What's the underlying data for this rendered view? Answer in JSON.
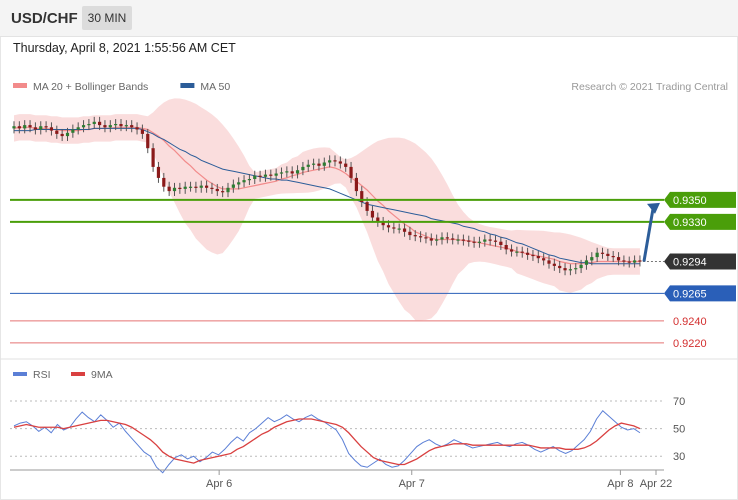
{
  "header": {
    "symbol": "USD/CHF",
    "timeframe": "30 MIN",
    "datetime": "Thursday, April 8, 2021 1:55:56 AM CET"
  },
  "chart_data": [
    {
      "type": "candlestick",
      "legend": [
        {
          "label": "MA 20 + Bollinger Bands",
          "color": "#f28b8b"
        },
        {
          "label": "MA 50",
          "color": "#2c5d99"
        }
      ],
      "legend_position": "top-left",
      "watermark": "Research © 2021 Trading Central",
      "colors": {
        "up": "#2e7d32",
        "down": "#8b1a1a",
        "band_fill": "#f9d7d7",
        "ma20": "#f28b8b",
        "ma50": "#2c5d99"
      },
      "ylim": [
        0.9209,
        0.9459
      ],
      "current_price": {
        "label": "0.9294",
        "value": 0.9294,
        "color": "#333333"
      },
      "levels": [
        {
          "label": "0.9350",
          "value": 0.935,
          "kind": "resistance",
          "color": "#4a9e0a"
        },
        {
          "label": "0.9330",
          "value": 0.933,
          "kind": "resistance",
          "color": "#4a9e0a"
        },
        {
          "label": "0.9265",
          "value": 0.9265,
          "kind": "pivot",
          "color": "#2a5fb8"
        },
        {
          "label": "0.9240",
          "value": 0.924,
          "kind": "support",
          "color": "#e57373"
        },
        {
          "label": "0.9220",
          "value": 0.922,
          "kind": "support",
          "color": "#e57373"
        }
      ],
      "forecast_arrow": {
        "from": 0.9294,
        "to": 0.935,
        "color": "#2c5d99"
      },
      "close": [
        0.9417,
        0.9415,
        0.9418,
        0.9416,
        0.9414,
        0.9417,
        0.9416,
        0.9413,
        0.941,
        0.9408,
        0.9411,
        0.9414,
        0.9416,
        0.9418,
        0.9419,
        0.9421,
        0.9418,
        0.9416,
        0.9418,
        0.9419,
        0.9417,
        0.9418,
        0.9416,
        0.9414,
        0.941,
        0.9397,
        0.938,
        0.937,
        0.9362,
        0.9358,
        0.9361,
        0.936,
        0.9362,
        0.9362,
        0.9361,
        0.9363,
        0.9361,
        0.936,
        0.9358,
        0.9357,
        0.9361,
        0.9364,
        0.9366,
        0.9368,
        0.9369,
        0.9372,
        0.9371,
        0.9373,
        0.9372,
        0.9374,
        0.9375,
        0.9376,
        0.9374,
        0.9377,
        0.938,
        0.9382,
        0.9383,
        0.9381,
        0.9384,
        0.9386,
        0.9385,
        0.9383,
        0.938,
        0.937,
        0.9358,
        0.9348,
        0.934,
        0.9334,
        0.933,
        0.9327,
        0.9325,
        0.9324,
        0.9324,
        0.9321,
        0.9318,
        0.9317,
        0.9316,
        0.9315,
        0.9313,
        0.9314,
        0.9316,
        0.9315,
        0.9314,
        0.9314,
        0.9313,
        0.9312,
        0.9311,
        0.9312,
        0.9314,
        0.9313,
        0.9312,
        0.9309,
        0.9305,
        0.9303,
        0.9303,
        0.9302,
        0.93,
        0.9299,
        0.9297,
        0.9295,
        0.9292,
        0.929,
        0.9288,
        0.9286,
        0.9287,
        0.9288,
        0.9291,
        0.9295,
        0.9298,
        0.9302,
        0.9301,
        0.9299,
        0.9298,
        0.9295,
        0.9294,
        0.9293,
        0.9295,
        0.9294
      ],
      "ma20": [
        0.9415,
        0.9416,
        0.9416,
        0.9416,
        0.9415,
        0.9415,
        0.9415,
        0.9414,
        0.9414,
        0.9413,
        0.9413,
        0.9413,
        0.9413,
        0.9414,
        0.9414,
        0.9415,
        0.9415,
        0.9415,
        0.9415,
        0.9416,
        0.9416,
        0.9416,
        0.9416,
        0.9416,
        0.9415,
        0.9414,
        0.9411,
        0.9408,
        0.9404,
        0.9399,
        0.9395,
        0.939,
        0.9385,
        0.9381,
        0.9376,
        0.9372,
        0.9368,
        0.9365,
        0.9362,
        0.936,
        0.936,
        0.936,
        0.936,
        0.9361,
        0.9362,
        0.9363,
        0.9364,
        0.9365,
        0.9366,
        0.9367,
        0.9369,
        0.937,
        0.9372,
        0.9373,
        0.9375,
        0.9376,
        0.9377,
        0.9378,
        0.9379,
        0.938,
        0.9379,
        0.9377,
        0.9374,
        0.937,
        0.9367,
        0.9363,
        0.9359,
        0.9354,
        0.9349,
        0.9345,
        0.934,
        0.9336,
        0.9332,
        0.9328,
        0.9325,
        0.9321,
        0.9319,
        0.9317,
        0.9315,
        0.9314,
        0.9314,
        0.9314,
        0.9314,
        0.9314,
        0.9313,
        0.9313,
        0.9312,
        0.9311,
        0.931,
        0.9309,
        0.9308,
        0.9307,
        0.9306,
        0.9305,
        0.9303,
        0.9302,
        0.9301,
        0.93,
        0.9299,
        0.9298,
        0.9297,
        0.9296,
        0.9294,
        0.9293,
        0.9292,
        0.9292,
        0.9292,
        0.9293,
        0.9293,
        0.9294,
        0.9294,
        0.9294,
        0.9294,
        0.9294,
        0.9294,
        0.9294,
        0.9294,
        0.9294
      ],
      "ma50": [
        0.9413,
        0.9413,
        0.9413,
        0.9413,
        0.9414,
        0.9414,
        0.9414,
        0.9414,
        0.9414,
        0.9414,
        0.9414,
        0.9414,
        0.9414,
        0.9414,
        0.9414,
        0.9415,
        0.9415,
        0.9415,
        0.9415,
        0.9415,
        0.9415,
        0.9415,
        0.9415,
        0.9415,
        0.9414,
        0.9412,
        0.941,
        0.9407,
        0.9405,
        0.9402,
        0.9399,
        0.9396,
        0.9394,
        0.9391,
        0.9389,
        0.9386,
        0.9384,
        0.9382,
        0.938,
        0.9378,
        0.9377,
        0.9376,
        0.9375,
        0.9374,
        0.9373,
        0.9372,
        0.9371,
        0.937,
        0.9369,
        0.9369,
        0.9368,
        0.9368,
        0.9367,
        0.9366,
        0.9365,
        0.9364,
        0.9363,
        0.9362,
        0.9361,
        0.936,
        0.9358,
        0.9356,
        0.9354,
        0.9352,
        0.935,
        0.9348,
        0.9346,
        0.9345,
        0.9344,
        0.9343,
        0.9342,
        0.9341,
        0.934,
        0.9339,
        0.9338,
        0.9337,
        0.9336,
        0.9335,
        0.9333,
        0.9332,
        0.9331,
        0.933,
        0.9329,
        0.9328,
        0.9326,
        0.9325,
        0.9324,
        0.9322,
        0.9321,
        0.9319,
        0.9318,
        0.9316,
        0.9315,
        0.9313,
        0.9311,
        0.931,
        0.9308,
        0.9306,
        0.9304,
        0.9302,
        0.93,
        0.9299,
        0.9297,
        0.9296,
        0.9295,
        0.9294,
        0.9293,
        0.9293,
        0.9292,
        0.9292,
        0.9292,
        0.9292,
        0.9292,
        0.9292,
        0.9292,
        0.9292,
        0.9292,
        0.9292
      ]
    },
    {
      "type": "line",
      "legend": [
        {
          "label": "RSI",
          "color": "#5b7fd6"
        },
        {
          "label": "9MA",
          "color": "#d94040"
        }
      ],
      "legend_position": "top-left",
      "ylim": [
        20,
        78
      ],
      "y_ticks": [
        "70",
        "50",
        "30"
      ],
      "x_ticks": [
        "Apr 6",
        "Apr 7",
        "Apr 8",
        "Apr 22"
      ],
      "x_tick_index": [
        29,
        65,
        104,
        125
      ],
      "rsi": [
        52,
        54,
        55,
        52,
        48,
        51,
        47,
        53,
        49,
        51,
        57,
        62,
        58,
        55,
        60,
        56,
        51,
        54,
        48,
        43,
        38,
        33,
        30,
        22,
        18,
        24,
        29,
        31,
        28,
        30,
        26,
        29,
        33,
        31,
        35,
        40,
        44,
        41,
        47,
        50,
        54,
        58,
        55,
        57,
        60,
        57,
        55,
        58,
        60,
        57,
        55,
        52,
        49,
        42,
        32,
        27,
        23,
        22,
        25,
        28,
        24,
        22,
        23,
        27,
        32,
        37,
        40,
        42,
        39,
        37,
        39,
        42,
        40,
        38,
        36,
        37,
        38,
        39,
        40,
        38,
        37,
        39,
        40,
        38,
        35,
        33,
        35,
        37,
        34,
        32,
        34,
        38,
        42,
        48,
        57,
        63,
        59,
        55,
        51,
        49,
        50,
        47
      ],
      "ma9": [
        51,
        52,
        53,
        52,
        51,
        51,
        51,
        51,
        50,
        51,
        52,
        53,
        54,
        55,
        56,
        56,
        55,
        54,
        53,
        51,
        48,
        45,
        42,
        38,
        33,
        30,
        28,
        27,
        26,
        25,
        27,
        28,
        29,
        30,
        31,
        32,
        35,
        37,
        40,
        43,
        46,
        48,
        51,
        53,
        55,
        56,
        57,
        57,
        57,
        56,
        55,
        54,
        53,
        51,
        47,
        42,
        37,
        33,
        29,
        27,
        26,
        25,
        24,
        24,
        26,
        28,
        31,
        34,
        36,
        37,
        38,
        39,
        39,
        39,
        38,
        38,
        38,
        38,
        38,
        38,
        38,
        38,
        38,
        38,
        37,
        36,
        36,
        36,
        36,
        35,
        35,
        35,
        36,
        38,
        41,
        45,
        49,
        52,
        54,
        53,
        52,
        50
      ]
    }
  ]
}
